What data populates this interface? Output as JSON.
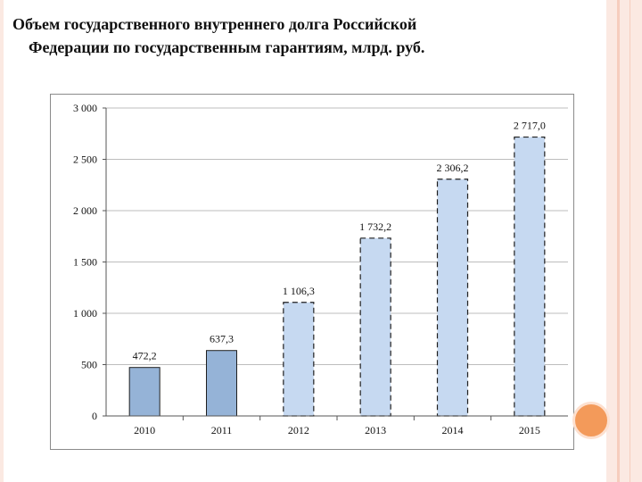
{
  "title_line1": "Объем государственного внутреннего долга Российской",
  "title_line2": "Федерации по государственным гарантиям, млрд. руб.",
  "chart_data": {
    "type": "bar",
    "categories": [
      "2010",
      "2011",
      "2012",
      "2013",
      "2014",
      "2015"
    ],
    "values": [
      472.2,
      637.3,
      1106.3,
      1732.2,
      2306.2,
      2717.0
    ],
    "value_labels": [
      "472,2",
      "637,3",
      "1 106,3",
      "1 732,2",
      "2 306,2",
      "2 717,0"
    ],
    "bar_style": [
      "solid",
      "solid",
      "dashed",
      "dashed",
      "dashed",
      "dashed"
    ],
    "ylim": [
      0,
      3000
    ],
    "yticks": [
      0,
      500,
      1000,
      1500,
      2000,
      2500,
      3000
    ],
    "ytick_labels": [
      "0",
      "500",
      "1 000",
      "1 500",
      "2 000",
      "2 500",
      "3 000"
    ],
    "grid": true,
    "colors": {
      "actual": "#95b3d7",
      "forecast": "#c6d9f1",
      "edge": "#1f1f1f"
    }
  }
}
